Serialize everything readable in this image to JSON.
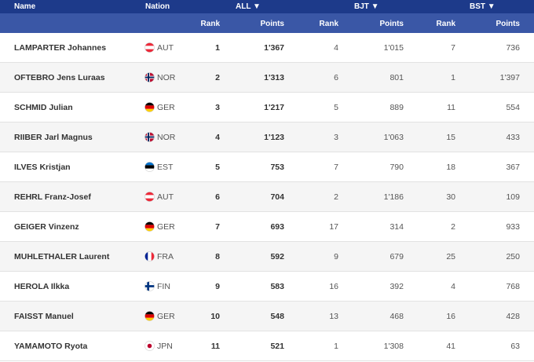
{
  "header": {
    "name": "Name",
    "nation": "Nation",
    "groups": [
      "ALL ▼",
      "BJT ▼",
      "BST ▼"
    ],
    "columns": [
      "Rank",
      "Points",
      "Rank",
      "Points",
      "Rank",
      "Points"
    ]
  },
  "rows": [
    [
      "LAMPARTER Johannes",
      "AUT",
      1,
      "1'367",
      4,
      "1'015",
      7,
      736
    ],
    [
      "OFTEBRO Jens Luraas",
      "NOR",
      2,
      "1'313",
      6,
      801,
      1,
      "1'397"
    ],
    [
      "SCHMID Julian",
      "GER",
      3,
      "1'217",
      5,
      889,
      11,
      554
    ],
    [
      "RIIBER Jarl Magnus",
      "NOR",
      4,
      "1'123",
      3,
      "1'063",
      15,
      433
    ],
    [
      "ILVES Kristjan",
      "EST",
      5,
      753,
      7,
      790,
      18,
      367
    ],
    [
      "REHRL Franz-Josef",
      "AUT",
      6,
      704,
      2,
      "1'186",
      30,
      109
    ],
    [
      "GEIGER Vinzenz",
      "GER",
      7,
      693,
      17,
      314,
      2,
      933
    ],
    [
      "MUHLETHALER Laurent",
      "FRA",
      8,
      592,
      9,
      679,
      25,
      250
    ],
    [
      "HEROLA Ilkka",
      "FIN",
      9,
      583,
      16,
      392,
      4,
      768
    ],
    [
      "FAISST Manuel",
      "GER",
      10,
      548,
      13,
      468,
      16,
      428
    ],
    [
      "YAMAMOTO Ryota",
      "JPN",
      11,
      521,
      1,
      "1'308",
      41,
      63
    ]
  ]
}
